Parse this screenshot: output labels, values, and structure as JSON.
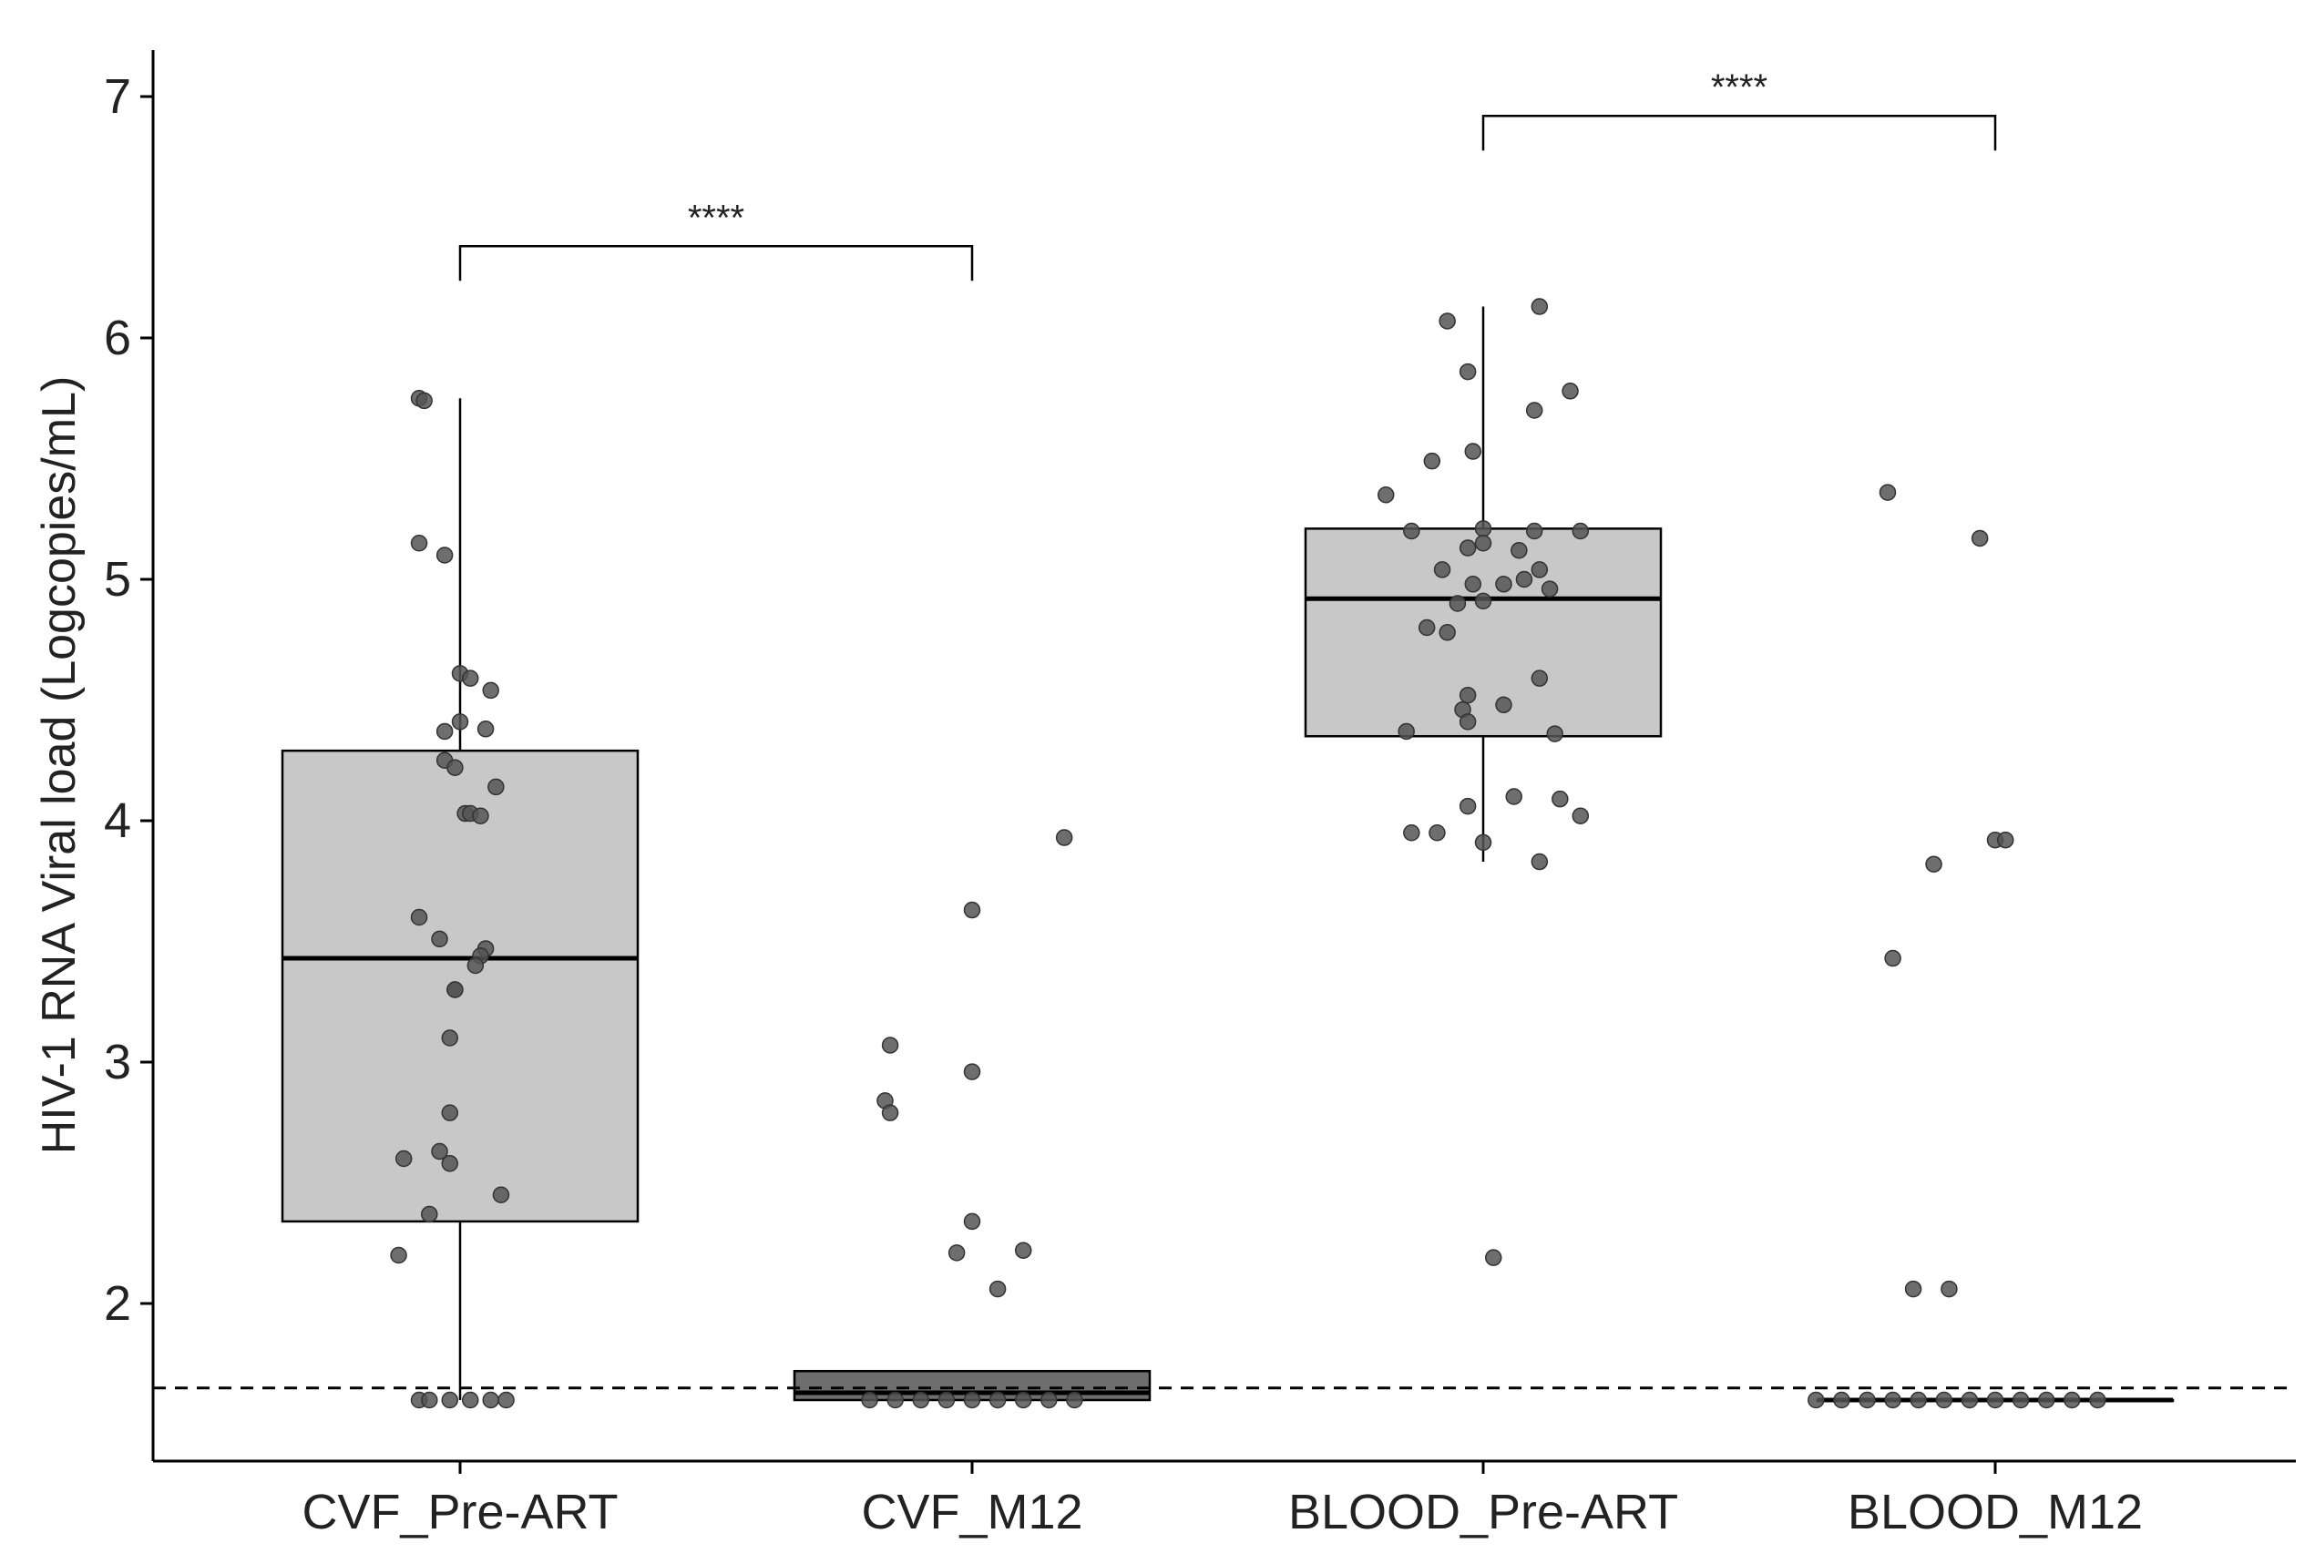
{
  "chart_data": {
    "type": "box",
    "ylabel": "HIV-1 RNA Viral load (Logcopies/mL)",
    "xlabel": "",
    "categories": [
      "CVF_Pre-ART",
      "CVF_M12",
      "BLOOD_Pre-ART",
      "BLOOD_M12"
    ],
    "ylim": [
      1.35,
      7.2
    ],
    "yticks": [
      2,
      3,
      4,
      5,
      6,
      7
    ],
    "threshold": 1.65,
    "colors": {
      "box_light": "#c8c8c8",
      "box_dark": "#6e6e6e",
      "point": "#555555",
      "line": "#000000"
    },
    "boxes": [
      {
        "category": "CVF_Pre-ART",
        "q1": 2.34,
        "median": 3.43,
        "q3": 4.29,
        "whisker_low": 1.6,
        "whisker_high": 5.75,
        "fill": "light"
      },
      {
        "category": "CVF_M12",
        "q1": 1.6,
        "median": 1.63,
        "q3": 1.72,
        "whisker_low": 1.6,
        "whisker_high": 1.72,
        "fill": "dark"
      },
      {
        "category": "BLOOD_Pre-ART",
        "q1": 4.35,
        "median": 4.92,
        "q3": 5.21,
        "whisker_low": 3.83,
        "whisker_high": 6.13,
        "fill": "light"
      },
      {
        "category": "BLOOD_M12",
        "q1": 1.6,
        "median": 1.6,
        "q3": 1.6,
        "whisker_low": 1.6,
        "whisker_high": 1.6,
        "fill": "light"
      }
    ],
    "points": [
      [
        [
          -0.08,
          5.75
        ],
        [
          -0.07,
          5.74
        ],
        [
          -0.08,
          5.15
        ],
        [
          -0.03,
          5.1
        ],
        [
          0.0,
          4.61
        ],
        [
          0.02,
          4.59
        ],
        [
          0.05,
          4.38
        ],
        [
          0.06,
          4.54
        ],
        [
          -0.03,
          4.37
        ],
        [
          0.0,
          4.41
        ],
        [
          -0.03,
          4.25
        ],
        [
          -0.01,
          4.22
        ],
        [
          0.07,
          4.14
        ],
        [
          0.01,
          4.03
        ],
        [
          0.02,
          4.03
        ],
        [
          0.04,
          4.02
        ],
        [
          -0.08,
          3.6
        ],
        [
          -0.04,
          3.51
        ],
        [
          0.05,
          3.47
        ],
        [
          0.04,
          3.44
        ],
        [
          0.03,
          3.4
        ],
        [
          -0.01,
          3.3
        ],
        [
          -0.01,
          3.3
        ],
        [
          -0.02,
          3.1
        ],
        [
          -0.02,
          2.79
        ],
        [
          -0.11,
          2.6
        ],
        [
          -0.04,
          2.63
        ],
        [
          -0.02,
          2.58
        ],
        [
          0.08,
          2.45
        ],
        [
          -0.06,
          2.37
        ],
        [
          -0.12,
          2.2
        ],
        [
          -0.08,
          1.6
        ],
        [
          -0.06,
          1.6
        ],
        [
          -0.02,
          1.6
        ],
        [
          0.02,
          1.6
        ],
        [
          0.06,
          1.6
        ],
        [
          0.09,
          1.6
        ]
      ],
      [
        [
          0.18,
          3.93
        ],
        [
          0.0,
          3.63
        ],
        [
          -0.16,
          3.07
        ],
        [
          0.0,
          2.96
        ],
        [
          -0.17,
          2.84
        ],
        [
          -0.16,
          2.79
        ],
        [
          0.0,
          2.34
        ],
        [
          0.1,
          2.22
        ],
        [
          -0.03,
          2.21
        ],
        [
          0.05,
          2.06
        ],
        [
          -0.2,
          1.6
        ],
        [
          -0.15,
          1.6
        ],
        [
          -0.1,
          1.6
        ],
        [
          -0.05,
          1.6
        ],
        [
          0.0,
          1.6
        ],
        [
          0.05,
          1.6
        ],
        [
          0.1,
          1.6
        ],
        [
          0.15,
          1.6
        ],
        [
          0.2,
          1.6
        ]
      ],
      [
        [
          0.11,
          6.13
        ],
        [
          -0.07,
          6.07
        ],
        [
          -0.03,
          5.86
        ],
        [
          0.17,
          5.78
        ],
        [
          0.1,
          5.7
        ],
        [
          -0.02,
          5.53
        ],
        [
          -0.1,
          5.49
        ],
        [
          -0.19,
          5.35
        ],
        [
          -0.14,
          5.2
        ],
        [
          0.0,
          5.21
        ],
        [
          0.1,
          5.2
        ],
        [
          0.19,
          5.2
        ],
        [
          0.0,
          5.15
        ],
        [
          -0.03,
          5.13
        ],
        [
          0.07,
          5.12
        ],
        [
          -0.08,
          5.04
        ],
        [
          0.11,
          5.04
        ],
        [
          0.08,
          5.0
        ],
        [
          0.04,
          4.98
        ],
        [
          0.13,
          4.96
        ],
        [
          -0.02,
          4.98
        ],
        [
          -0.05,
          4.9
        ],
        [
          0.0,
          4.91
        ],
        [
          -0.11,
          4.8
        ],
        [
          -0.07,
          4.78
        ],
        [
          0.11,
          4.59
        ],
        [
          -0.03,
          4.52
        ],
        [
          -0.04,
          4.46
        ],
        [
          0.04,
          4.48
        ],
        [
          -0.03,
          4.41
        ],
        [
          -0.15,
          4.37
        ],
        [
          0.14,
          4.36
        ],
        [
          0.06,
          4.1
        ],
        [
          0.15,
          4.09
        ],
        [
          -0.03,
          4.06
        ],
        [
          0.19,
          4.02
        ],
        [
          -0.14,
          3.95
        ],
        [
          -0.09,
          3.95
        ],
        [
          0.0,
          3.91
        ],
        [
          0.11,
          3.83
        ],
        [
          0.02,
          2.19
        ]
      ],
      [
        [
          -0.21,
          5.36
        ],
        [
          -0.03,
          5.17
        ],
        [
          -0.2,
          3.43
        ],
        [
          -0.12,
          3.82
        ],
        [
          0.0,
          3.92
        ],
        [
          0.02,
          3.92
        ],
        [
          -0.16,
          2.06
        ],
        [
          -0.09,
          2.06
        ],
        [
          -0.35,
          1.6
        ],
        [
          -0.3,
          1.6
        ],
        [
          -0.25,
          1.6
        ],
        [
          -0.2,
          1.6
        ],
        [
          -0.15,
          1.6
        ],
        [
          -0.1,
          1.6
        ],
        [
          -0.05,
          1.6
        ],
        [
          0.0,
          1.6
        ],
        [
          0.05,
          1.6
        ],
        [
          0.1,
          1.6
        ],
        [
          0.15,
          1.6
        ],
        [
          0.2,
          1.6
        ]
      ]
    ],
    "comparisons": [
      {
        "from": "CVF_Pre-ART",
        "to": "CVF_M12",
        "y": 6.38,
        "label": "****"
      },
      {
        "from": "BLOOD_Pre-ART",
        "to": "BLOOD_M12",
        "y": 6.92,
        "label": "****"
      }
    ],
    "grid": false,
    "legend": "none"
  }
}
